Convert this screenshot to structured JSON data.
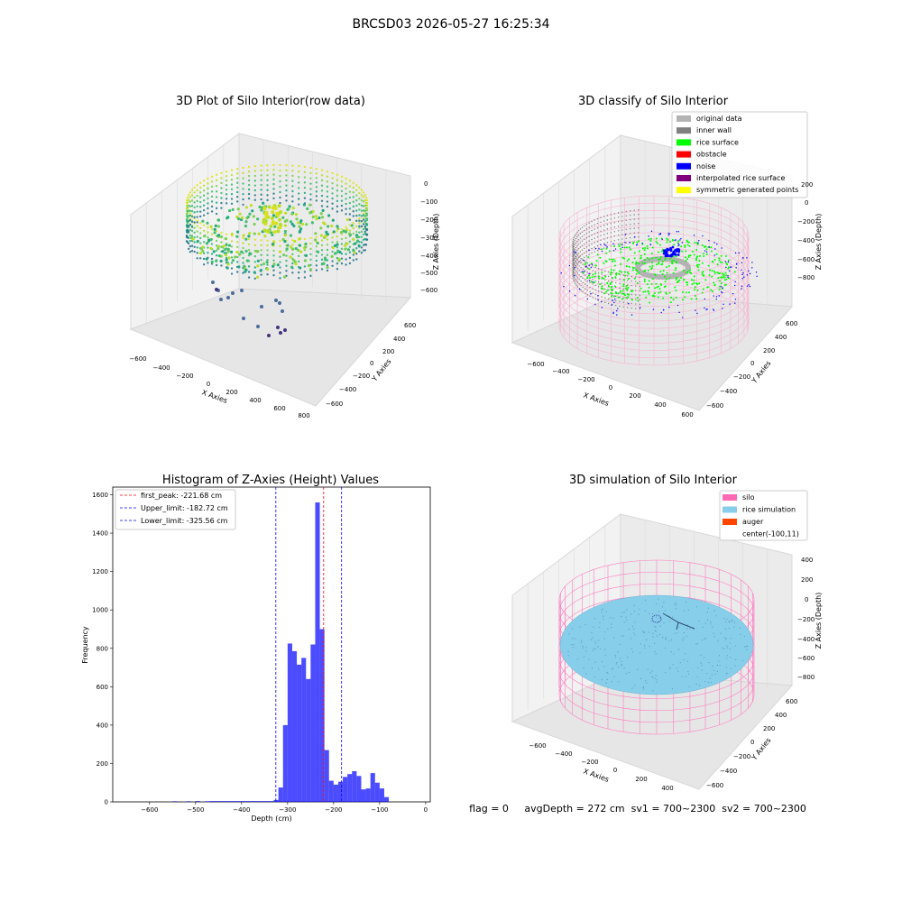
{
  "suptitle": "BRCSD03 2026-05-27 16:25:34",
  "panels": {
    "raw": {
      "title": "3D Plot of Silo Interior(row data)",
      "xlabel": "X Axies",
      "ylabel": "Y Axies",
      "zlabel": "Z Axies (Depth)",
      "xticks": [
        "−600",
        "−400",
        "−200",
        "0",
        "200",
        "400",
        "600",
        "800"
      ],
      "yticks": [
        "600",
        "400",
        "200",
        "0",
        "−200",
        "−400",
        "−600"
      ],
      "zticks": [
        "0",
        "−100",
        "−200",
        "−300",
        "−400",
        "−500",
        "−600"
      ]
    },
    "classify": {
      "title": "3D classify of Silo Interior",
      "xlabel": "X Axies",
      "ylabel": "Y Axies",
      "zlabel": "Z Axies (Depth)",
      "xticks": [
        "−600",
        "−400",
        "−200",
        "0",
        "200",
        "400",
        "600"
      ],
      "yticks": [
        "600",
        "400",
        "200",
        "0",
        "−200",
        "−400",
        "−600"
      ],
      "zticks": [
        "200",
        "0",
        "−200",
        "−400",
        "−600",
        "−800"
      ],
      "legend": [
        {
          "label": "original data",
          "color": "#b3b3b3"
        },
        {
          "label": "inner wall",
          "color": "#808080"
        },
        {
          "label": "rice surface",
          "color": "#00ff00"
        },
        {
          "label": "obstacle",
          "color": "#ff0000"
        },
        {
          "label": "noise",
          "color": "#0000ff"
        },
        {
          "label": "interpolated rice surface",
          "color": "#800080"
        },
        {
          "label": "symmetric generated points",
          "color": "#ffff00"
        }
      ]
    },
    "simulation": {
      "title": "3D simulation of Silo Interior",
      "xlabel": "X Axies",
      "ylabel": "Y Axies",
      "zlabel": "Z Axies (Depth)",
      "xticks": [
        "−600",
        "−400",
        "−200",
        "0",
        "200",
        "400"
      ],
      "yticks": [
        "600",
        "400",
        "200",
        "0",
        "−200",
        "−400",
        "−600"
      ],
      "zticks": [
        "400",
        "200",
        "0",
        "−200",
        "−400",
        "−600",
        "−800"
      ],
      "legend": [
        {
          "label": "silo",
          "color": "#ff69b4"
        },
        {
          "label": "rice simulation",
          "color": "#87ceeb"
        },
        {
          "label": "auger",
          "color": "#ff4500"
        },
        {
          "label": "center(-100,11)",
          "color": ""
        }
      ],
      "status": "flag = 0     avgDepth = 272 cm  sv1 = 700~2300  sv2 = 700~2300"
    }
  },
  "chart_data": [
    {
      "type": "bar",
      "title": "Histogram of Z-Axies (Height) Values",
      "xlabel": "Depth (cm)",
      "ylabel": "Frequency",
      "xlim": [
        -680,
        10
      ],
      "ylim": [
        0,
        1640
      ],
      "color": "#0000ff",
      "bin_width": 10,
      "xticks": [
        -600,
        -500,
        -400,
        -300,
        -200,
        -100,
        0
      ],
      "xtick_labels": [
        "−600",
        "−500",
        "−400",
        "−300",
        "−200",
        "−100",
        "0"
      ],
      "yticks": [
        0,
        200,
        400,
        600,
        800,
        1000,
        1200,
        1400,
        1600
      ],
      "ytick_labels": [
        "0",
        "200",
        "400",
        "600",
        "800",
        "1000",
        "1200",
        "1400",
        "1600"
      ],
      "bin_starts": [
        -550,
        -520,
        -500,
        -480,
        -470,
        -460,
        -450,
        -440,
        -430,
        -420,
        -410,
        -400,
        -390,
        -380,
        -370,
        -360,
        -350,
        -340,
        -330,
        -320,
        -310,
        -300,
        -290,
        -280,
        -270,
        -260,
        -250,
        -240,
        -230,
        -220,
        -210,
        -200,
        -190,
        -180,
        -170,
        -160,
        -150,
        -140,
        -130,
        -120,
        -110,
        -100,
        -90,
        -80,
        -70,
        -60,
        -50,
        -40,
        -30,
        -20
      ],
      "values": [
        3,
        3,
        4,
        3,
        4,
        4,
        4,
        4,
        4,
        4,
        4,
        4,
        4,
        4,
        4,
        4,
        4,
        4,
        10,
        75,
        400,
        825,
        785,
        715,
        750,
        640,
        820,
        1560,
        900,
        270,
        110,
        90,
        105,
        130,
        145,
        160,
        135,
        65,
        70,
        150,
        100,
        70,
        25,
        0,
        0,
        0,
        0,
        0,
        0,
        0
      ],
      "reference_lines": [
        {
          "label": "first_peak: -221.68 cm",
          "x": -221.68,
          "color": "#ff0000"
        },
        {
          "label": "Upper_limit: -182.72 cm",
          "x": -182.72,
          "color": "#0000ff"
        },
        {
          "label": "Lower_limit: -325.56 cm",
          "x": -325.56,
          "color": "#0000ff"
        }
      ]
    }
  ]
}
